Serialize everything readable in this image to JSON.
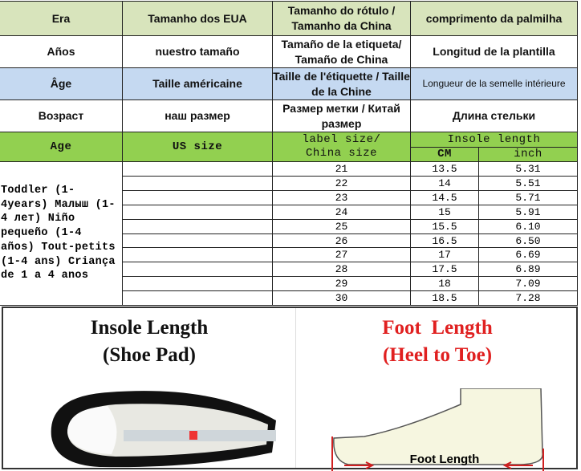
{
  "header_rows": [
    {
      "lang": "pt",
      "cells": [
        "Era",
        "Tamanho dos EUA",
        "Tamanho do rótulo / Tamanho da China",
        "comprimento da palmilha"
      ]
    },
    {
      "lang": "es",
      "cells": [
        "Años",
        "nuestro tamaño",
        "Tamaño de la etiqueta/ Tamaño de China",
        "Longitud de la plantilla"
      ]
    },
    {
      "lang": "fr",
      "cells": [
        "Âge",
        "Taille américaine",
        "Taille de l'étiquette / Taille de la Chine",
        "Longueur de la semelle intérieure"
      ]
    },
    {
      "lang": "ru",
      "cells": [
        "Возраст",
        "наш размер",
        "Размер метки / Китай размер",
        "Длина стельки"
      ]
    }
  ],
  "table_header": {
    "age": "Age",
    "us_size": "US size",
    "label_size": "label size/ China size",
    "insole_length": "Insole length",
    "cm": "CM",
    "inch": "inch"
  },
  "age_label": "Toddler (1-4years) Малыш (1-4 лет) Niño pequeño (1-4 años) Tout-petits (1-4 ans) Criança de 1 a 4 anos",
  "rows": [
    {
      "us": "",
      "china": "21",
      "cm": "13.5",
      "inch": "5.31"
    },
    {
      "us": "",
      "china": "22",
      "cm": "14",
      "inch": "5.51"
    },
    {
      "us": "",
      "china": "23",
      "cm": "14.5",
      "inch": "5.71"
    },
    {
      "us": "",
      "china": "24",
      "cm": "15",
      "inch": "5.91"
    },
    {
      "us": "",
      "china": "25",
      "cm": "15.5",
      "inch": "6.10"
    },
    {
      "us": "",
      "china": "26",
      "cm": "16.5",
      "inch": "6.50"
    },
    {
      "us": "",
      "china": "27",
      "cm": "17",
      "inch": "6.69"
    },
    {
      "us": "",
      "china": "28",
      "cm": "17.5",
      "inch": "6.89"
    },
    {
      "us": "",
      "china": "29",
      "cm": "18",
      "inch": "7.09"
    },
    {
      "us": "",
      "china": "30",
      "cm": "18.5",
      "inch": "7.28"
    }
  ],
  "guide": {
    "insole_title_1": "Insole Length",
    "insole_title_2": "(Shoe Pad)",
    "foot_title_1": "Foot  Length",
    "foot_title_2": "(Heel to Toe)",
    "foot_caption": "Foot Length",
    "colors": {
      "foot_title": "#e02020",
      "arrow": "#d02020"
    }
  },
  "colors": {
    "row_pt": "#d8e4bc",
    "row_fr": "#c5d9f1",
    "header_green": "#92d050"
  }
}
